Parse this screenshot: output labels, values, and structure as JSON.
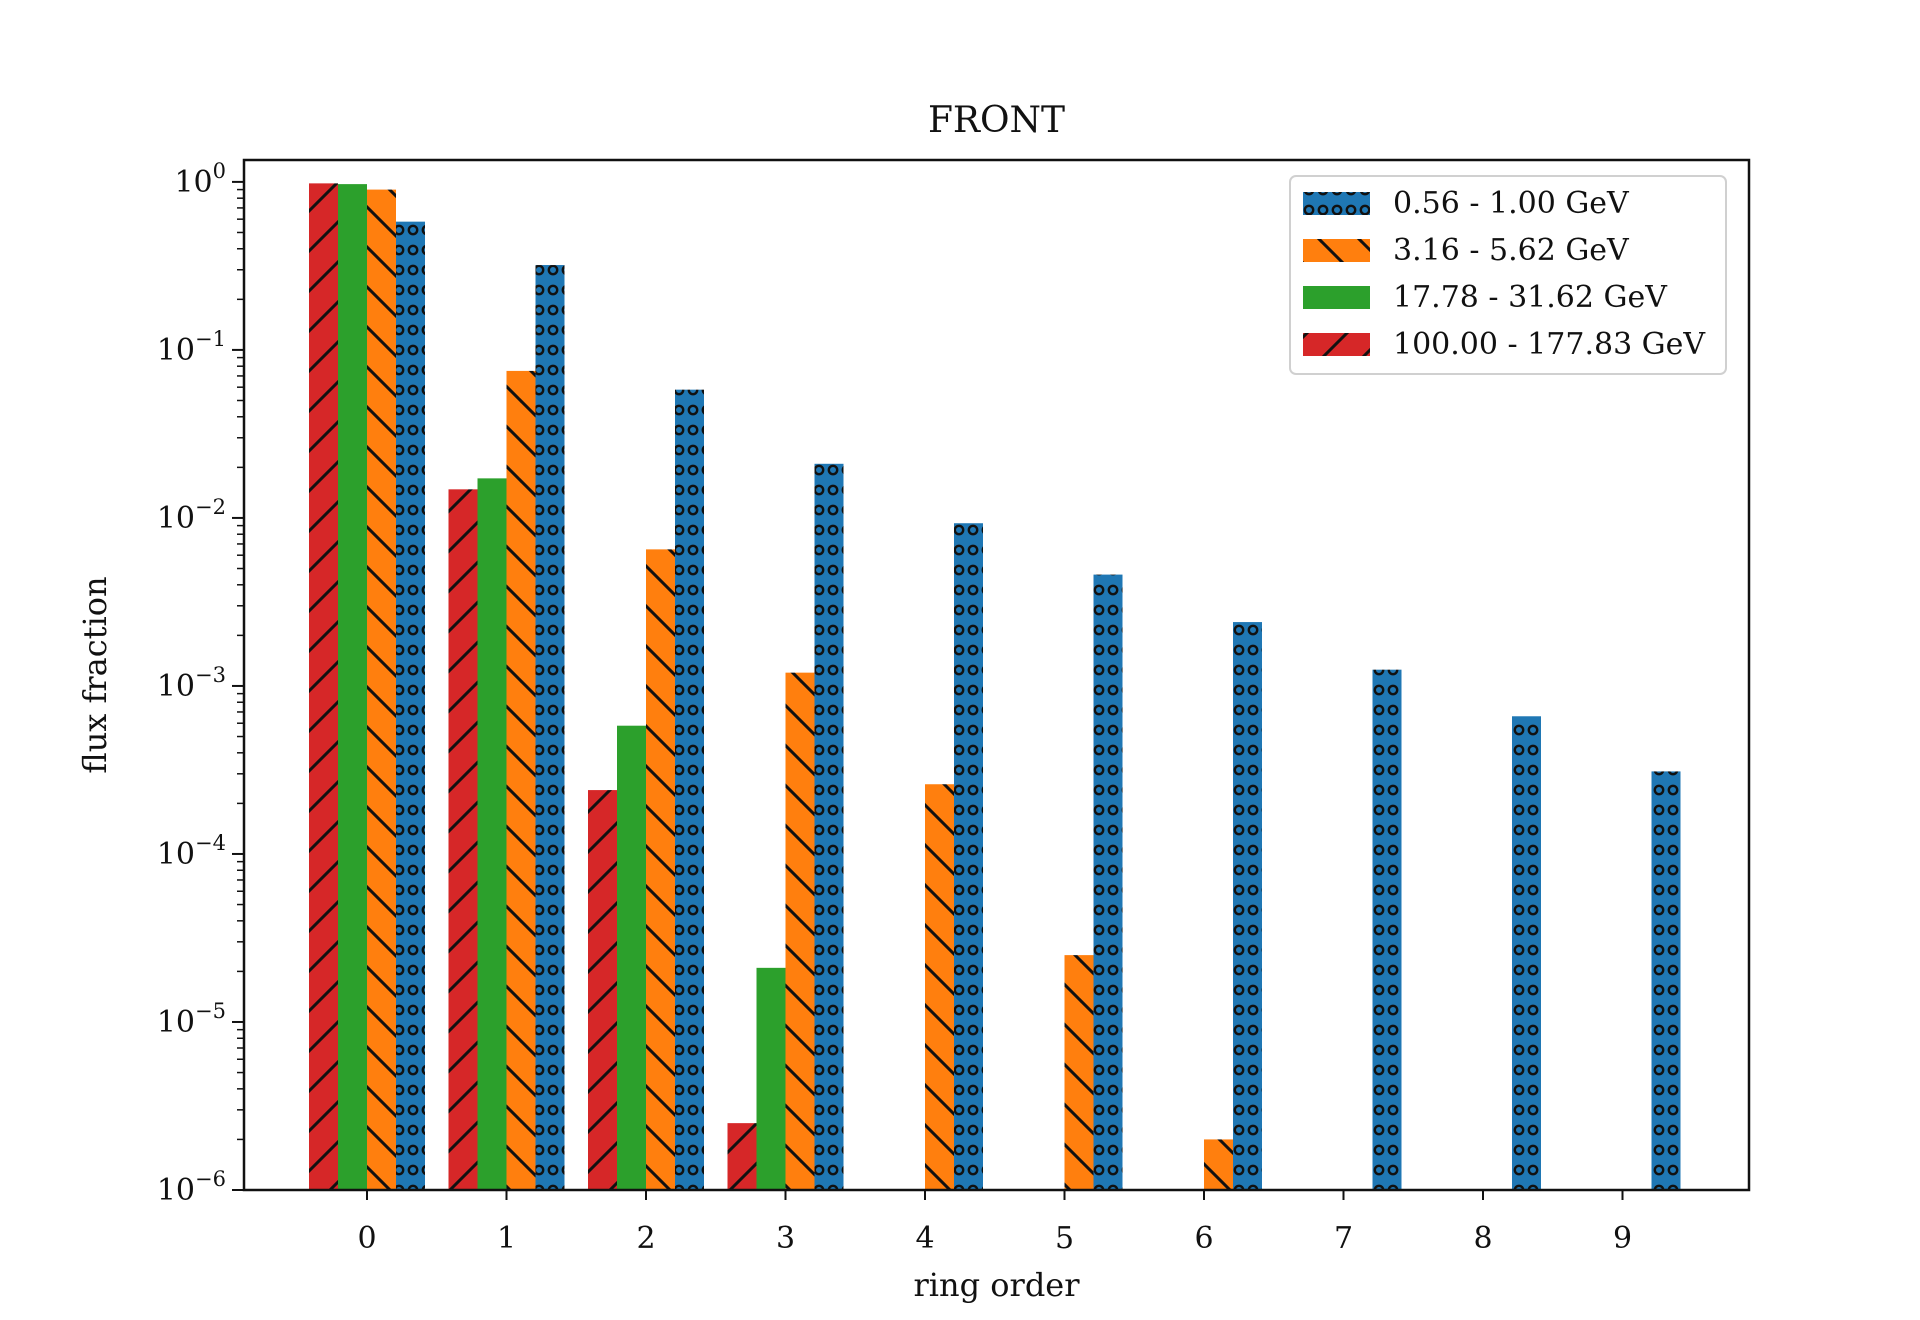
{
  "chart_data": {
    "type": "bar",
    "title": "FRONT",
    "xlabel": "ring order",
    "ylabel": "flux fraction",
    "yscale": "log",
    "ylim": [
      1e-06,
      1.35
    ],
    "grid": false,
    "legend": {
      "placement": "top-right"
    },
    "categories": [
      "0",
      "1",
      "2",
      "3",
      "4",
      "5",
      "6",
      "7",
      "8",
      "9"
    ],
    "y_ticks": [
      {
        "value": 1.0,
        "base": "10",
        "exp": "0"
      },
      {
        "value": 0.1,
        "base": "10",
        "exp": "−1"
      },
      {
        "value": 0.01,
        "base": "10",
        "exp": "−2"
      },
      {
        "value": 0.001,
        "base": "10",
        "exp": "−3"
      },
      {
        "value": 0.0001,
        "base": "10",
        "exp": "−4"
      },
      {
        "value": 1e-05,
        "base": "10",
        "exp": "−5"
      },
      {
        "value": 1e-06,
        "base": "10",
        "exp": "−6"
      }
    ],
    "series": [
      {
        "name": "100.00 - 177.83 GeV",
        "color": "#d62728",
        "pattern": "diagonal-slash",
        "values": [
          0.98,
          0.0148,
          0.00024,
          2.5e-06,
          null,
          null,
          null,
          null,
          null,
          null
        ]
      },
      {
        "name": "17.78 - 31.62 GeV",
        "color": "#2ca02c",
        "pattern": "solid",
        "values": [
          0.97,
          0.0172,
          0.00058,
          2.1e-05,
          null,
          null,
          null,
          null,
          null,
          null
        ]
      },
      {
        "name": "3.16 - 5.62 GeV",
        "color": "#ff7f0e",
        "pattern": "diagonal-backslash",
        "values": [
          0.9,
          0.075,
          0.0065,
          0.0012,
          0.00026,
          2.5e-05,
          2e-06,
          null,
          null,
          null
        ]
      },
      {
        "name": "0.56 - 1.00 GeV",
        "color": "#1f77b4",
        "pattern": "circles",
        "values": [
          0.58,
          0.32,
          0.058,
          0.021,
          0.0093,
          0.0046,
          0.0024,
          0.00125,
          0.00066,
          0.00031
        ]
      }
    ],
    "legend_order": [
      "0.56 - 1.00 GeV",
      "3.16 - 5.62 GeV",
      "17.78 - 31.62 GeV",
      "100.00 - 177.83 GeV"
    ]
  }
}
